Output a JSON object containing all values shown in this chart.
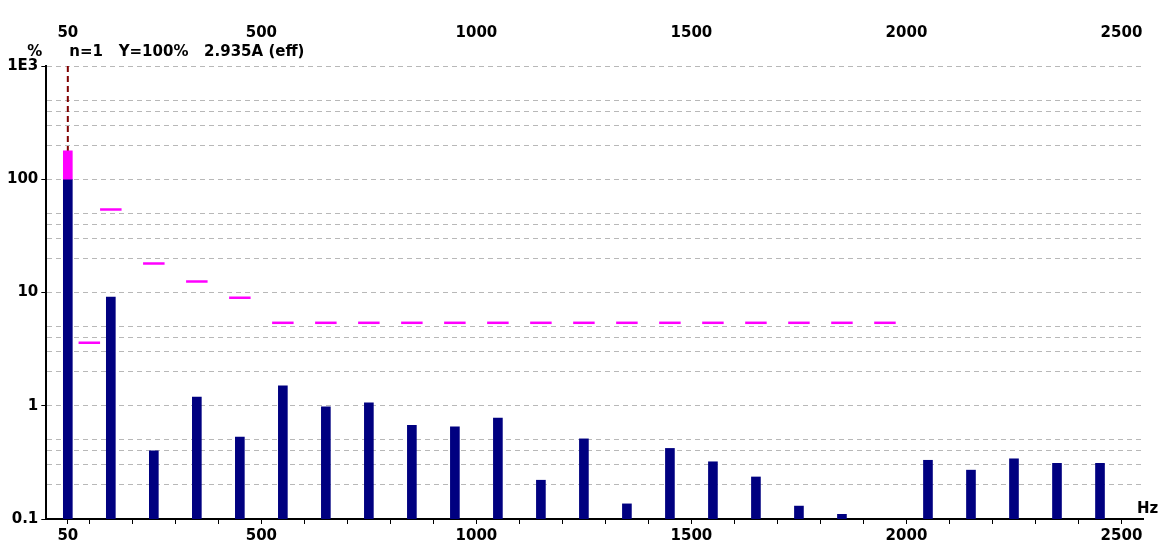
{
  "chart_data": {
    "type": "bar",
    "title": "n=1   Y=100%   2.935A (eff)",
    "ylabel": "%",
    "xlabel": "Hz",
    "log": "y",
    "grid": "y",
    "legend": false,
    "marker": "none",
    "line_style": "solid",
    "xlim": [
      0,
      2550
    ],
    "xticks": [
      {
        "value": 50,
        "label": "50"
      },
      {
        "value": 100,
        "label": null
      },
      {
        "value": 200,
        "label": null
      },
      {
        "value": 300,
        "label": null
      },
      {
        "value": 400,
        "label": null
      },
      {
        "value": 500,
        "label": "500"
      },
      {
        "value": 600,
        "label": null
      },
      {
        "value": 700,
        "label": null
      },
      {
        "value": 800,
        "label": null
      },
      {
        "value": 900,
        "label": null
      },
      {
        "value": 1000,
        "label": "1000"
      },
      {
        "value": 1100,
        "label": null
      },
      {
        "value": 1200,
        "label": null
      },
      {
        "value": 1300,
        "label": null
      },
      {
        "value": 1400,
        "label": null
      },
      {
        "value": 1500,
        "label": "1500"
      },
      {
        "value": 1600,
        "label": null
      },
      {
        "value": 1700,
        "label": null
      },
      {
        "value": 1800,
        "label": null
      },
      {
        "value": 1900,
        "label": null
      },
      {
        "value": 2000,
        "label": "2000"
      },
      {
        "value": 2100,
        "label": null
      },
      {
        "value": 2200,
        "label": null
      },
      {
        "value": 2300,
        "label": null
      },
      {
        "value": 2400,
        "label": null
      },
      {
        "value": 2500,
        "label": "2500"
      }
    ],
    "x2lim": [
      0,
      2550
    ],
    "x2ticks": [
      50,
      500,
      1000,
      1500,
      2000,
      2500
    ],
    "ylim": [
      0.1,
      1000
    ],
    "yticks": [
      {
        "value": 0.1,
        "label": "0.1"
      },
      {
        "value": 0.2,
        "label": null
      },
      {
        "value": 0.3,
        "label": null
      },
      {
        "value": 0.4,
        "label": null
      },
      {
        "value": 0.5,
        "label": null
      },
      {
        "value": 1,
        "label": "1"
      },
      {
        "value": 2,
        "label": null
      },
      {
        "value": 3,
        "label": null
      },
      {
        "value": 4,
        "label": null
      },
      {
        "value": 5,
        "label": null
      },
      {
        "value": 10,
        "label": "10"
      },
      {
        "value": 20,
        "label": null
      },
      {
        "value": 30,
        "label": null
      },
      {
        "value": 40,
        "label": null
      },
      {
        "value": 50,
        "label": null
      },
      {
        "value": 100,
        "label": "100"
      },
      {
        "value": 200,
        "label": null
      },
      {
        "value": 300,
        "label": null
      },
      {
        "value": 400,
        "label": null
      },
      {
        "value": 500,
        "label": null
      },
      {
        "value": 1000,
        "label": "1E3"
      }
    ],
    "ref_lines": [
      {
        "axis": "x",
        "value": 50,
        "color": "#800000",
        "line_style": "dashed"
      }
    ],
    "series": [
      {
        "type": "bar",
        "color": "#ff00ff",
        "x": [
          50
        ],
        "base": [
          100
        ],
        "values": [
          78
        ]
      },
      {
        "color": "#000080",
        "x": [
          50,
          150,
          250,
          350,
          450,
          550,
          650,
          750,
          850,
          950,
          1050,
          1150,
          1250,
          1350,
          1450,
          1550,
          1650,
          1750,
          1850,
          1950,
          2050,
          2150,
          2250,
          2350,
          2450
        ],
        "values": [
          100,
          9.1,
          0.4,
          1.19,
          0.53,
          1.5,
          0.98,
          1.06,
          0.67,
          0.65,
          0.78,
          0.22,
          0.51,
          0.136,
          0.42,
          0.32,
          0.235,
          0.13,
          0.11,
          null,
          0.33,
          0.27,
          0.34,
          0.31,
          0.31
        ]
      },
      {
        "type": "line",
        "color": "#ff00ff",
        "x": [
          75,
          125
        ],
        "values": [
          3.6,
          3.6
        ]
      },
      {
        "type": "line",
        "color": "#ff00ff",
        "x": [
          125,
          175
        ],
        "values": [
          54,
          54
        ]
      },
      {
        "type": "line",
        "color": "#ff00ff",
        "x": [
          225,
          275
        ],
        "values": [
          18,
          18
        ]
      },
      {
        "type": "line",
        "color": "#ff00ff",
        "x": [
          325,
          375
        ],
        "values": [
          12.5,
          12.5
        ]
      },
      {
        "type": "line",
        "color": "#ff00ff",
        "x": [
          425,
          475
        ],
        "values": [
          9,
          9
        ]
      },
      {
        "type": "line",
        "color": "#ff00ff",
        "x": [
          525,
          575
        ],
        "values": [
          5.4,
          5.4
        ]
      },
      {
        "type": "line",
        "color": "#ff00ff",
        "x": [
          625,
          675
        ],
        "values": [
          5.4,
          5.4
        ]
      },
      {
        "type": "line",
        "color": "#ff00ff",
        "x": [
          725,
          775
        ],
        "values": [
          5.4,
          5.4
        ]
      },
      {
        "type": "line",
        "color": "#ff00ff",
        "x": [
          825,
          875
        ],
        "values": [
          5.4,
          5.4
        ]
      },
      {
        "type": "line",
        "color": "#ff00ff",
        "x": [
          925,
          975
        ],
        "values": [
          5.4,
          5.4
        ]
      },
      {
        "type": "line",
        "color": "#ff00ff",
        "x": [
          1025,
          1075
        ],
        "values": [
          5.4,
          5.4
        ]
      },
      {
        "type": "line",
        "color": "#ff00ff",
        "x": [
          1125,
          1175
        ],
        "values": [
          5.4,
          5.4
        ]
      },
      {
        "type": "line",
        "color": "#ff00ff",
        "x": [
          1225,
          1275
        ],
        "values": [
          5.4,
          5.4
        ]
      },
      {
        "type": "line",
        "color": "#ff00ff",
        "x": [
          1325,
          1375
        ],
        "values": [
          5.4,
          5.4
        ]
      },
      {
        "type": "line",
        "color": "#ff00ff",
        "x": [
          1425,
          1475
        ],
        "values": [
          5.4,
          5.4
        ]
      },
      {
        "type": "line",
        "color": "#ff00ff",
        "x": [
          1525,
          1575
        ],
        "values": [
          5.4,
          5.4
        ]
      },
      {
        "type": "line",
        "color": "#ff00ff",
        "x": [
          1625,
          1675
        ],
        "values": [
          5.4,
          5.4
        ]
      },
      {
        "type": "line",
        "color": "#ff00ff",
        "x": [
          1725,
          1775
        ],
        "values": [
          5.4,
          5.4
        ]
      },
      {
        "type": "line",
        "color": "#ff00ff",
        "x": [
          1825,
          1875
        ],
        "values": [
          5.4,
          5.4
        ]
      },
      {
        "type": "line",
        "color": "#ff00ff",
        "x": [
          1925,
          1975
        ],
        "values": [
          5.4,
          5.4
        ]
      }
    ]
  }
}
